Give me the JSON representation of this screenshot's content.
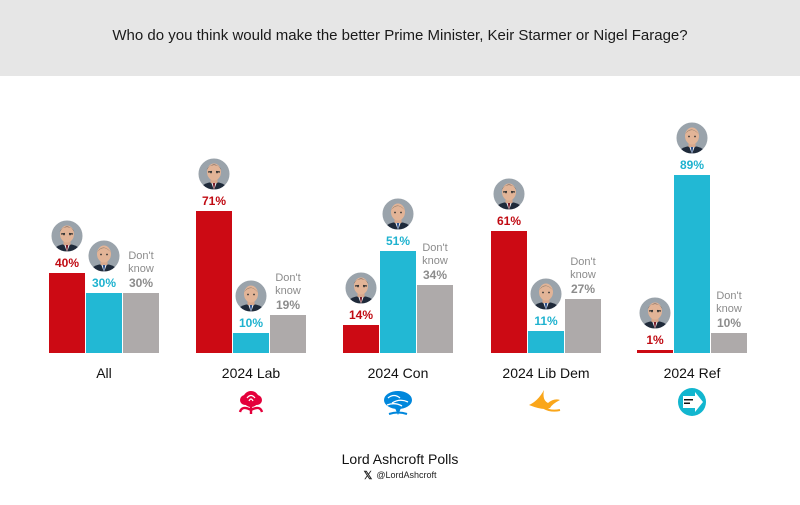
{
  "chart_data": {
    "type": "bar",
    "title": "Who do you think would make the better Prime Minister, Keir Starmer or Nigel Farage?",
    "categories": [
      "All",
      "2024 Lab",
      "2024 Con",
      "2024 Lib Dem",
      "2024 Ref"
    ],
    "series": [
      {
        "name": "Keir Starmer",
        "values": [
          40,
          71,
          14,
          61,
          1
        ],
        "labels": [
          "40%",
          "71%",
          "14%",
          "61%",
          "1%"
        ]
      },
      {
        "name": "Nigel Farage",
        "values": [
          30,
          10,
          51,
          11,
          89
        ],
        "labels": [
          "30%",
          "10%",
          "51%",
          "11%",
          "89%"
        ]
      },
      {
        "name": "Don't know",
        "values": [
          30,
          19,
          34,
          27,
          10
        ],
        "labels": [
          "30%",
          "19%",
          "34%",
          "27%",
          "10%"
        ]
      }
    ],
    "dont_know_label": [
      "Don't",
      "know"
    ],
    "colors": [
      "#cc0a14",
      "#22b8d4",
      "#aeaaaa"
    ],
    "party_logos": [
      "",
      "labour-rose-icon",
      "conservative-tree-icon",
      "libdem-bird-icon",
      "reform-arrow-icon"
    ],
    "party_logo_colors": [
      "",
      "#e4003b",
      "#0087dc",
      "#faa61a",
      "#12b6cf"
    ],
    "ylim": [
      0,
      100
    ]
  },
  "footer": {
    "title": "Lord Ashcroft Polls",
    "x_icon": "x-logo-icon",
    "x_glyph": "𝕏",
    "handle": "@LordAshcroft"
  }
}
